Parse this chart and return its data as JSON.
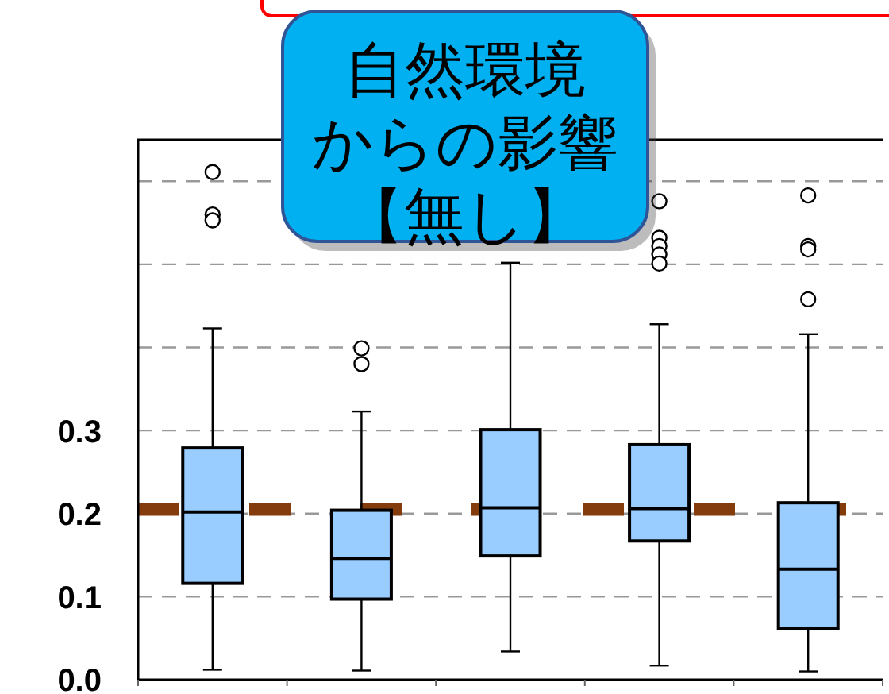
{
  "chart_data": {
    "type": "box",
    "categories": [
      null,
      null,
      null,
      null,
      null
    ],
    "color": "#99ccff",
    "boxes": [
      {
        "low": 0.012,
        "q1": 0.116,
        "median": 0.202,
        "q3": 0.279,
        "high": 0.423,
        "outliers": [
          0.611,
          0.56,
          0.553
        ]
      },
      {
        "low": 0.011,
        "q1": 0.097,
        "median": 0.146,
        "q3": 0.204,
        "high": 0.323,
        "outliers": [
          0.399,
          0.38
        ]
      },
      {
        "low": 0.034,
        "q1": 0.149,
        "median": 0.207,
        "q3": 0.301,
        "high": 0.502
      },
      {
        "low": 0.017,
        "q1": 0.167,
        "median": 0.206,
        "q3": 0.283,
        "high": 0.428,
        "outliers": [
          0.576,
          0.532,
          0.522,
          0.512,
          0.501
        ]
      },
      {
        "low": 0.01,
        "q1": 0.062,
        "median": 0.133,
        "q3": 0.213,
        "high": 0.416,
        "outliers": [
          0.583,
          0.522,
          0.518,
          0.458
        ]
      }
    ],
    "ylim": [
      0,
      0.65
    ],
    "yticks": [
      {
        "value": 0,
        "label": "0.0"
      },
      0.1,
      0.2,
      0.3,
      {
        "value": 0.4,
        "label": null
      },
      {
        "value": 0.5,
        "label": null
      },
      {
        "value": 0.6,
        "label": null
      }
    ],
    "grid": "y",
    "ref_lines": [
      {
        "axis": "y",
        "value": 0.205,
        "color": "#843c0c",
        "line_style": "dashed"
      }
    ],
    "annotations": [
      "自然環境からの影響【無し】"
    ]
  }
}
